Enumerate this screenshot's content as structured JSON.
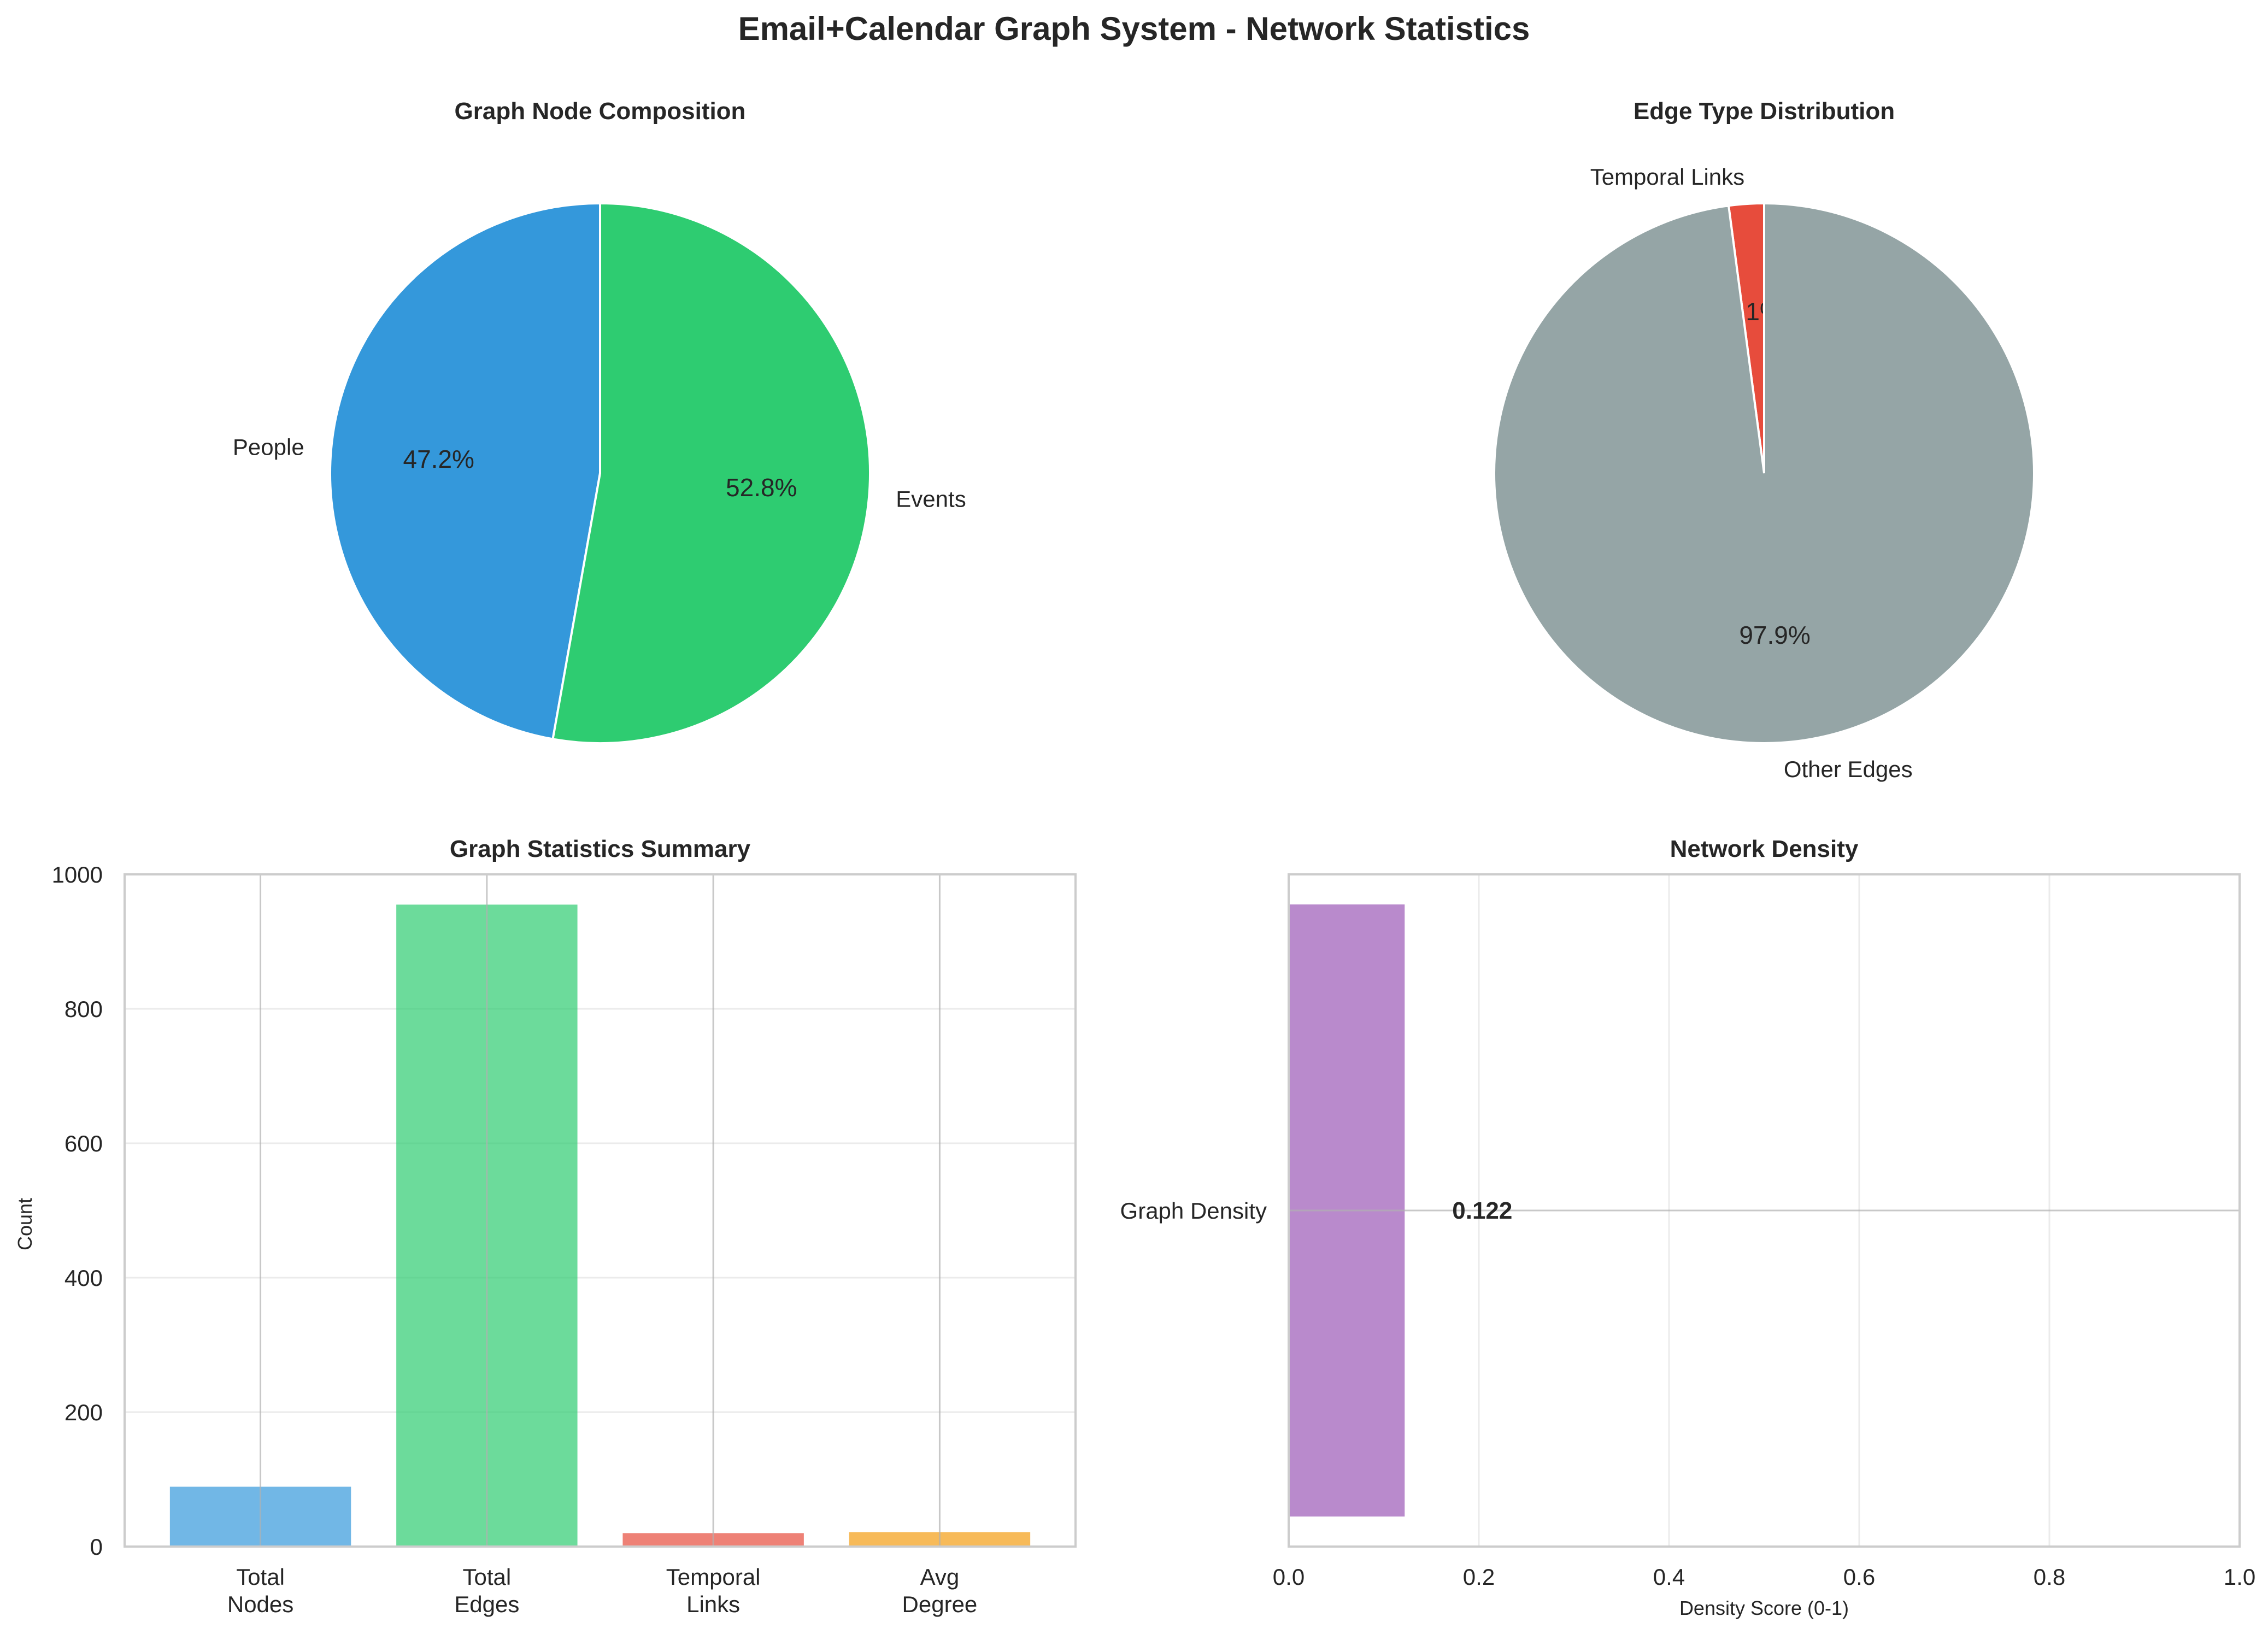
{
  "figure": {
    "title": "Email+Calendar Graph System - Network Statistics"
  },
  "chart_data": [
    {
      "type": "pie",
      "title": "Graph Node Composition",
      "slices": [
        {
          "label": "People",
          "value": 47.2,
          "pct_label": "47.2%",
          "color": "#3498db"
        },
        {
          "label": "Events",
          "value": 52.8,
          "pct_label": "52.8%",
          "color": "#2ecc71"
        }
      ]
    },
    {
      "type": "pie",
      "title": "Edge Type Distribution",
      "slices": [
        {
          "label": "Temporal Links",
          "value": 2.1,
          "pct_label": "2.1%",
          "color": "#e74c3c"
        },
        {
          "label": "Other Edges",
          "value": 97.9,
          "pct_label": "97.9%",
          "color": "#95a5a6"
        }
      ]
    },
    {
      "type": "bar",
      "title": "Graph Statistics Summary",
      "categories": [
        [
          "Total",
          "Nodes"
        ],
        [
          "Total",
          "Edges"
        ],
        [
          "Temporal",
          "Links"
        ],
        [
          "Avg",
          "Degree"
        ]
      ],
      "values": [
        89,
        955,
        20,
        21.5
      ],
      "colors": [
        "#3498db",
        "#2ecc71",
        "#e74c3c",
        "#f39c12"
      ],
      "ylabel": "Count",
      "ylim": [
        0,
        1000
      ],
      "yticks": [
        0,
        200,
        400,
        600,
        800,
        1000
      ],
      "grid": true
    },
    {
      "type": "bar",
      "orientation": "horizontal",
      "title": "Network Density",
      "categories": [
        "Graph Density"
      ],
      "values": [
        0.122
      ],
      "value_labels": [
        "0.122"
      ],
      "colors": [
        "#9b59b6"
      ],
      "xlabel": "Density Score (0-1)",
      "xlim": [
        0,
        1
      ],
      "xticks": [
        "0.0",
        "0.2",
        "0.4",
        "0.6",
        "0.8",
        "1.0"
      ],
      "grid": true
    }
  ]
}
